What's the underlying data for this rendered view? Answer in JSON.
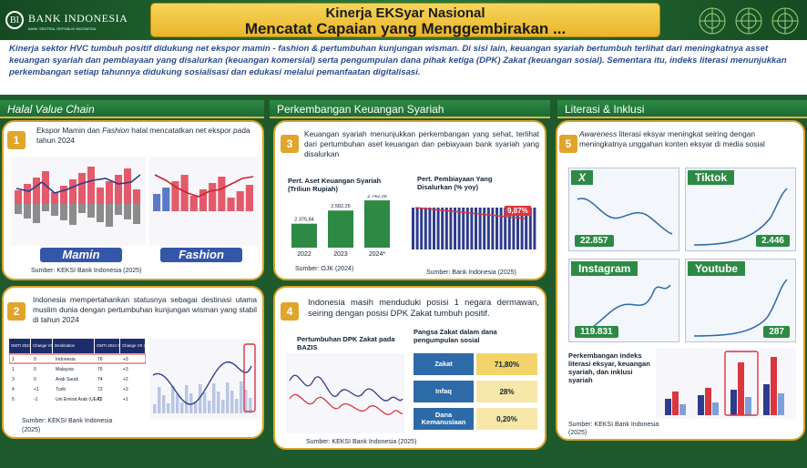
{
  "header": {
    "logo_text": "BANK INDONESIA",
    "logo_sub": "BANK SENTRAL REPUBLIK INDONESIA",
    "title_line1": "Kinerja EKSyar Nasional",
    "title_line2": "Mencatat Capaian yang Menggembirakan ..."
  },
  "intro": "Kinerja sektor HVC tumbuh positif didukung net ekspor mamin - fashion & pertumbuhan kunjungan wisman. Di sisi lain, keuangan syariah bertumbuh terlihat dari meningkatnya asset keuangan syariah dan pembiayaan  yang disalurkan (keuangan komersial) serta pengumpulan dana pihak ketiga (DPK) Zakat (keuangan sosial). Sementara itu, indeks literasi menunjukkan perkembangan setiap tahunnya didukung sosialisasi dan edukasi melalui pemanfaatan digitalisasi.",
  "sections": {
    "hvc": "Halal Value Chain",
    "keuangan": "Perkembangan Keuangan Syariah",
    "literasi": "Literasi & Inklusi"
  },
  "panel1": {
    "num": "1",
    "text_pre": "Ekspor Mamin dan ",
    "text_em": "Fashion",
    "text_post": " halal mencatatkan net ekspor pada tahun 2024",
    "chip_mamin": "Mamin",
    "chip_fashion": "Fashion",
    "source": "Sumber: KEKSI Bank Indonesia (2025)"
  },
  "panel2": {
    "num": "2",
    "text": "Indonesia mempertahankan statusnya sebagai destinasi utama muslim dunia dengan pertumbuhan kunjungan wisman yang stabil di tahun 2024",
    "source": "Sumber: KEKSI Bank Indonesia (2025)",
    "table_headers": [
      "GMTI 2024 Rank",
      "Change VS 2023",
      "Destination",
      "GMTI 2024 Score",
      "Change VS 2023"
    ],
    "table_rows": [
      [
        "1",
        "0",
        "Indonesia",
        "76",
        "+3"
      ],
      [
        "1",
        "0",
        "Malaysia",
        "76",
        "+3"
      ],
      [
        "3",
        "0",
        "Arab Saudi",
        "74",
        "+2"
      ],
      [
        "4",
        "+1",
        "Turki",
        "73",
        "+3"
      ],
      [
        "5",
        "-1",
        "Uni Emirat Arab (UEA)",
        "72",
        "+1"
      ]
    ]
  },
  "panel3": {
    "num": "3",
    "text": "Keuangan syariah menunjukkan perkembangan yang sehat, terlihat dari pertumbuhan aset keuangan dan pebiayaan bank syariah yang disalurkan",
    "asset_title": "Pert. Aset Keuangan Syariah (Triliun Rupiah)",
    "asset_years": [
      "2022",
      "2023",
      "2024*"
    ],
    "asset_values": [
      2375.84,
      2582.25,
      2742.09
    ],
    "asset_labels": [
      "2.375,84",
      "2.582,25",
      "2.742,09"
    ],
    "asset_source": "Sumber: OJK (2024)",
    "fin_title": "Pert. Pembiayaan Yang Disalurkan (% yoy)",
    "fin_highlight": "9,87%",
    "fin_source": "Sumber: Bank Indonesia (2025)"
  },
  "panel4": {
    "num": "4",
    "text": "Indonesia masih menduduki posisi 1 negara dermawan, seiring dengan posisi DPK Zakat tumbuh positif.",
    "dpk_title": "Pertumbuhan DPK Zakat pada BAZIS",
    "share_title": "Pangsa Zakat dalam dana pengumpulan sosial",
    "shares": [
      {
        "label": "Zakat",
        "value": "71,80%"
      },
      {
        "label": "Infaq",
        "value": "28%"
      },
      {
        "label": "Dana Kemanusiaan",
        "value": "0,20%"
      }
    ],
    "source": "Sumber: KEKSI Bank Indonesia (2025)"
  },
  "panel5": {
    "num": "5",
    "text_em": "Awareness",
    "text_post": " literasi eksyar meningkat seiring dengan meningkatnya unggahan konten eksyar di media sosial",
    "socials": [
      {
        "name": "X",
        "value": "22.857"
      },
      {
        "name": "Tiktok",
        "value": "2.446"
      },
      {
        "name": "Instagram",
        "value": "119.831"
      },
      {
        "name": "Youtube",
        "value": "287"
      }
    ],
    "index_text": "Perkembangan indeks literasi eksyar, keuangan syariah, dan inklusi syariah",
    "source": "Sumber: KEKSI Bank Indonesia (2025)"
  },
  "colors": {
    "green": "#1f5a2c",
    "gold": "#e0a52a",
    "navy": "#1e3f82",
    "red": "#d9363e"
  }
}
